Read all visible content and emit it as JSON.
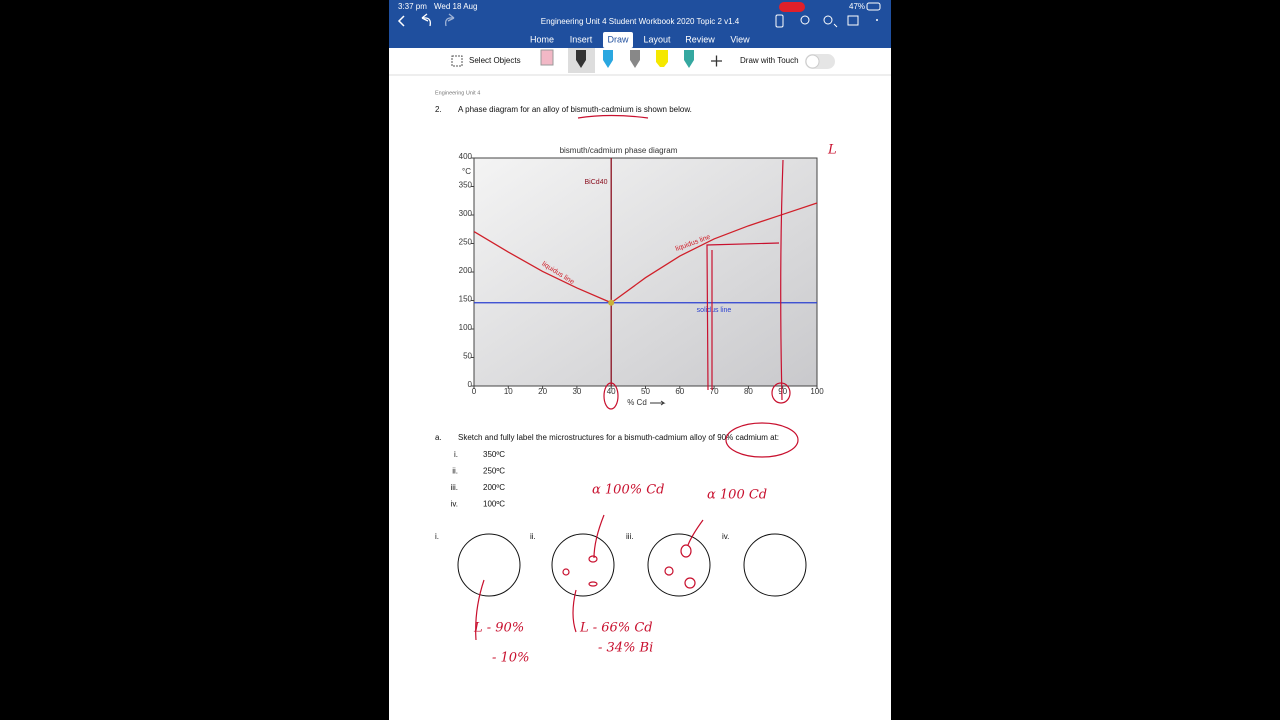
{
  "status": {
    "time": "3:37 pm",
    "date": "Wed 18 Aug",
    "battery": "47%"
  },
  "header": {
    "title": "Engineering Unit 4 Student Workbook 2020 Topic 2 v1.4",
    "tabs": [
      "Home",
      "Insert",
      "Draw",
      "Layout",
      "Review",
      "View"
    ],
    "selected_tab": 2
  },
  "toolbar": {
    "select": "Select Objects",
    "touch": "Draw with Touch"
  },
  "doc": {
    "running_head": "Engineering Unit 4",
    "question": {
      "number": "2.",
      "text": "A phase diagram for an alloy of bismuth-cadmium is shown below."
    },
    "part_a": {
      "label": "a.",
      "text": "Sketch and fully label the microstructures for a bismuth-cadmium alloy of 90% cadmium at:",
      "items": [
        [
          "i.",
          "350ºC"
        ],
        [
          "ii.",
          "250ºC"
        ],
        [
          "iii.",
          "200ºC"
        ],
        [
          "iv.",
          "100ºC"
        ]
      ]
    },
    "circle_labels": [
      "i.",
      "ii.",
      "iii.",
      "iv."
    ]
  },
  "chart_data": {
    "type": "line",
    "title": "bismuth/cadmium phase diagram",
    "x_label": "% Cd",
    "y_unit": "°C",
    "xlim": [
      0,
      100
    ],
    "xticks": [
      0,
      10,
      20,
      30,
      40,
      50,
      60,
      70,
      80,
      90,
      100
    ],
    "ylim": [
      0,
      400
    ],
    "yticks": [
      0,
      50,
      100,
      150,
      200,
      250,
      300,
      350,
      400
    ],
    "series": [
      {
        "name": "liquidus line",
        "color": "#d0202a",
        "x": [
          0,
          10,
          20,
          30,
          40
        ],
        "values": [
          271,
          235,
          201,
          172,
          146
        ]
      },
      {
        "name": "liquidus line",
        "color": "#d0202a",
        "x": [
          40,
          50,
          60,
          70,
          80,
          90,
          100
        ],
        "values": [
          146,
          190,
          228,
          258,
          281,
          301,
          321
        ]
      },
      {
        "name": "solidus line",
        "color": "#2a3fd0",
        "x": [
          0,
          100
        ],
        "values": [
          146,
          146
        ]
      },
      {
        "name": "BiCd40",
        "color": "#8b1020",
        "x": [
          40,
          40
        ],
        "values": [
          0,
          400
        ]
      }
    ]
  },
  "handwriting": [
    "L",
    "α 100% Cd",
    "α 100 Cd",
    "L - 90%",
    "- 10%",
    "L - 66% Cd",
    "- 34% Bi"
  ]
}
